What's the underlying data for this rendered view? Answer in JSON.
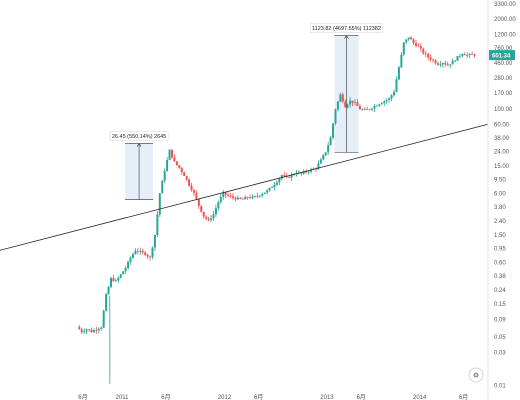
{
  "colors": {
    "up": "#26a69a",
    "down": "#ef5350",
    "trendline": "#222222",
    "annotation_fill": "#dbe8f7",
    "annotation_line": "#333333",
    "price_badge": "#26a69a",
    "axis_text": "#555555"
  },
  "chart_data": {
    "type": "candlestick",
    "y_scale": "log",
    "ylim": [
      0.008,
      3300
    ],
    "xlim": [
      0,
      100
    ],
    "x_ticks": [
      {
        "x": 17,
        "label": "6月"
      },
      {
        "x": 25,
        "label": "2011"
      },
      {
        "x": 34,
        "label": "6月"
      },
      {
        "x": 46,
        "label": "2012"
      },
      {
        "x": 53,
        "label": "6月"
      },
      {
        "x": 67,
        "label": "2013"
      },
      {
        "x": 74,
        "label": "6月"
      },
      {
        "x": 86,
        "label": "2014"
      },
      {
        "x": 95,
        "label": "6月"
      }
    ],
    "y_ticks": [
      {
        "v": 3300,
        "label": "3300.00"
      },
      {
        "v": 2000,
        "label": "2000.00"
      },
      {
        "v": 1200,
        "label": "1200.00"
      },
      {
        "v": 760,
        "label": "760.00"
      },
      {
        "v": 460,
        "label": "460.00"
      },
      {
        "v": 280,
        "label": "280.00"
      },
      {
        "v": 170,
        "label": "170.00"
      },
      {
        "v": 100,
        "label": "100.00"
      },
      {
        "v": 60,
        "label": "60.00"
      },
      {
        "v": 38,
        "label": "38.00"
      },
      {
        "v": 24,
        "label": "24.00"
      },
      {
        "v": 15,
        "label": "15.00"
      },
      {
        "v": 9.5,
        "label": "9.50"
      },
      {
        "v": 6,
        "label": "6.00"
      },
      {
        "v": 3.8,
        "label": "3.80"
      },
      {
        "v": 2.4,
        "label": "2.40"
      },
      {
        "v": 1.5,
        "label": "1.50"
      },
      {
        "v": 0.95,
        "label": "0.95"
      },
      {
        "v": 0.6,
        "label": "0.60"
      },
      {
        "v": 0.38,
        "label": "0.38"
      },
      {
        "v": 0.24,
        "label": "0.24"
      },
      {
        "v": 0.15,
        "label": "0.15"
      },
      {
        "v": 0.09,
        "label": "0.09"
      },
      {
        "v": 0.05,
        "label": "0.05"
      },
      {
        "v": 0.03,
        "label": "0.03"
      },
      {
        "v": 0.01,
        "label": "0.01"
      }
    ],
    "price_points": [
      [
        16,
        0.07
      ],
      [
        17,
        0.06
      ],
      [
        18,
        0.065
      ],
      [
        19,
        0.06
      ],
      [
        20,
        0.065
      ],
      [
        21,
        0.07
      ],
      [
        22,
        0.2
      ],
      [
        23,
        0.35
      ],
      [
        24,
        0.32
      ],
      [
        25,
        0.4
      ],
      [
        26,
        0.5
      ],
      [
        27,
        0.7
      ],
      [
        28,
        0.9
      ],
      [
        29,
        0.85
      ],
      [
        30,
        0.8
      ],
      [
        31,
        0.7
      ],
      [
        32,
        1.5
      ],
      [
        33,
        6
      ],
      [
        34,
        13
      ],
      [
        35,
        25
      ],
      [
        36,
        17
      ],
      [
        37,
        14
      ],
      [
        38,
        11
      ],
      [
        39,
        8
      ],
      [
        40,
        6
      ],
      [
        41,
        4
      ],
      [
        42,
        2.8
      ],
      [
        43,
        2.4
      ],
      [
        44,
        3
      ],
      [
        45,
        4.5
      ],
      [
        46,
        6
      ],
      [
        47,
        5.5
      ],
      [
        48,
        5.2
      ],
      [
        49,
        5
      ],
      [
        50,
        4.9
      ],
      [
        51,
        5.3
      ],
      [
        52,
        5.2
      ],
      [
        53,
        5.5
      ],
      [
        54,
        6
      ],
      [
        55,
        6.5
      ],
      [
        56,
        7.5
      ],
      [
        57,
        9
      ],
      [
        58,
        11
      ],
      [
        59,
        10
      ],
      [
        60,
        11
      ],
      [
        61,
        12
      ],
      [
        62,
        11.5
      ],
      [
        63,
        12.5
      ],
      [
        64,
        13
      ],
      [
        65,
        14
      ],
      [
        66,
        18
      ],
      [
        67,
        24
      ],
      [
        68,
        38
      ],
      [
        69,
        100
      ],
      [
        70,
        160
      ],
      [
        71,
        110
      ],
      [
        72,
        130
      ],
      [
        73,
        120
      ],
      [
        74,
        100
      ],
      [
        75,
        95
      ],
      [
        76,
        100
      ],
      [
        77,
        110
      ],
      [
        78,
        120
      ],
      [
        79,
        130
      ],
      [
        80,
        140
      ],
      [
        81,
        180
      ],
      [
        82,
        400
      ],
      [
        83,
        900
      ],
      [
        84,
        1100
      ],
      [
        85,
        900
      ],
      [
        86,
        800
      ],
      [
        87,
        650
      ],
      [
        88,
        560
      ],
      [
        89,
        500
      ],
      [
        90,
        450
      ],
      [
        91,
        470
      ],
      [
        92,
        430
      ],
      [
        93,
        480
      ],
      [
        94,
        560
      ],
      [
        95,
        640
      ],
      [
        96,
        600
      ],
      [
        97,
        601.34
      ]
    ],
    "trendline": {
      "x": [
        0,
        100
      ],
      "y": [
        0.9,
        60
      ]
    },
    "annotations": [
      {
        "label": "26.45 (550.14%) 2645",
        "x": 28.5,
        "y_low": 4.85,
        "y_high": 31.5
      },
      {
        "label": "1123.82 (4697.55%) 112382",
        "x": 71,
        "y_low": 23.5,
        "y_high": 1147
      }
    ],
    "last_price": {
      "value": 601.34,
      "label": "601.34"
    }
  },
  "ui": {
    "settings_label": "⚙"
  }
}
